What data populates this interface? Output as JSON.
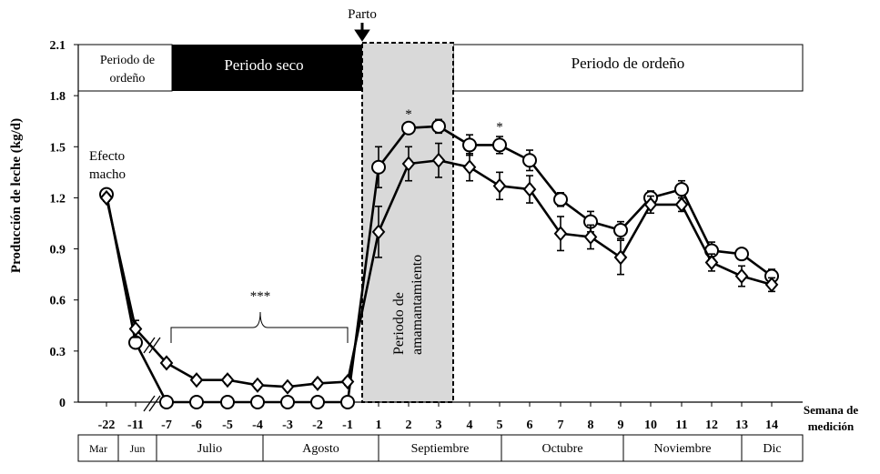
{
  "chart_data": {
    "type": "line",
    "ylabel": "Producción de leche (kg/d)",
    "xlabel": "Semana de medición",
    "ylim": [
      0,
      2.1
    ],
    "y_ticks": [
      "0",
      "0.3",
      "0.6",
      "0.9",
      "1.2",
      "1.5",
      "1.8",
      "2.1"
    ],
    "x_ticks": [
      "-22",
      "-11",
      "-7",
      "-6",
      "-5",
      "-4",
      "-3",
      "-2",
      "-1",
      "1",
      "2",
      "3",
      "4",
      "5",
      "6",
      "7",
      "8",
      "9",
      "10",
      "11",
      "12",
      "13",
      "14"
    ],
    "series": [
      {
        "name": "circle",
        "marker": "circle",
        "values": [
          1.22,
          0.35,
          0,
          0,
          0,
          0,
          0,
          0,
          0,
          1.38,
          1.61,
          1.62,
          1.51,
          1.51,
          1.42,
          1.19,
          1.06,
          1.01,
          1.2,
          1.25,
          0.89,
          0.87,
          0.74
        ],
        "errors": [
          0.02,
          0.03,
          0,
          0,
          0,
          0,
          0,
          0,
          0,
          0.12,
          0.03,
          0.04,
          0.06,
          0.05,
          0.06,
          0.04,
          0.06,
          0.05,
          0.04,
          0.05,
          0.05,
          0.03,
          0.04
        ]
      },
      {
        "name": "diamond",
        "marker": "diamond",
        "values": [
          1.2,
          0.43,
          0.23,
          0.13,
          0.13,
          0.1,
          0.09,
          0.11,
          0.12,
          1.0,
          1.4,
          1.42,
          1.38,
          1.27,
          1.25,
          0.99,
          0.97,
          0.85,
          1.16,
          1.16,
          0.82,
          0.74,
          0.69
        ],
        "errors": [
          0.02,
          0.05,
          0.02,
          0.01,
          0.02,
          0.02,
          0.01,
          0.02,
          0.02,
          0.15,
          0.1,
          0.1,
          0.08,
          0.08,
          0.08,
          0.1,
          0.07,
          0.1,
          0.05,
          0.04,
          0.05,
          0.06,
          0.04
        ]
      }
    ],
    "annotations": {
      "parto": "Parto",
      "efecto_macho_1": "Efecto",
      "efecto_macho_2": "macho",
      "triple_star": "***",
      "star_1": "*",
      "star_2": "*",
      "amamantamiento_1": "Periodo de",
      "amamantamiento_2": "amamantamiento"
    },
    "periods": {
      "ordeno_left_1": "Periodo de",
      "ordeno_left_2": "ordeño",
      "seco": "Periodo seco",
      "ordeno_right": "Periodo de ordeño"
    },
    "xlabel_1": "Semana de",
    "xlabel_2": "medición",
    "months": [
      "Mar",
      "Jun",
      "Julio",
      "Agosto",
      "Septiembre",
      "Octubre",
      "Noviembre",
      "Dic"
    ]
  }
}
